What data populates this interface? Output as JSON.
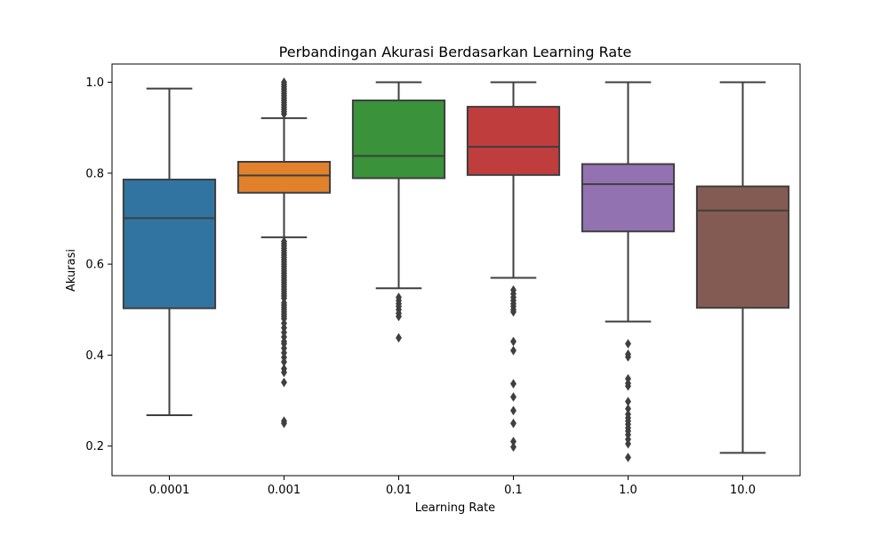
{
  "chart_data": {
    "type": "box",
    "title": "Perbandingan Akurasi Berdasarkan Learning Rate",
    "xlabel": "Learning Rate",
    "ylabel": "Akurasi",
    "categories": [
      "0.0001",
      "0.001",
      "0.01",
      "0.1",
      "1.0",
      "10.0"
    ],
    "ylim": [
      0.135,
      1.04
    ],
    "yticks": [
      0.2,
      0.4,
      0.6,
      0.8,
      1.0
    ],
    "ytick_labels": [
      "0.2",
      "0.4",
      "0.6",
      "0.8",
      "1.0"
    ],
    "grid": false,
    "legend": "none",
    "boxes": [
      {
        "category": "0.0001",
        "color": "#3274a1",
        "whisker_low": 0.268,
        "q1": 0.503,
        "median": 0.701,
        "q3": 0.786,
        "whisker_high": 0.986,
        "outliers": []
      },
      {
        "category": "0.001",
        "color": "#e1812c",
        "whisker_low": 0.659,
        "q1": 0.757,
        "median": 0.795,
        "q3": 0.825,
        "whisker_high": 0.921,
        "outliers": [
          0.93,
          0.935,
          0.94,
          0.945,
          0.95,
          0.955,
          0.96,
          0.965,
          0.97,
          0.975,
          0.98,
          0.985,
          0.99,
          0.995,
          1.0,
          0.65,
          0.645,
          0.64,
          0.635,
          0.63,
          0.625,
          0.62,
          0.615,
          0.61,
          0.605,
          0.6,
          0.595,
          0.59,
          0.585,
          0.58,
          0.575,
          0.57,
          0.565,
          0.56,
          0.555,
          0.55,
          0.545,
          0.54,
          0.535,
          0.53,
          0.525,
          0.515,
          0.51,
          0.505,
          0.5,
          0.495,
          0.49,
          0.485,
          0.48,
          0.47,
          0.46,
          0.45,
          0.44,
          0.43,
          0.425,
          0.415,
          0.405,
          0.395,
          0.385,
          0.37,
          0.362,
          0.34,
          0.255,
          0.25
        ]
      },
      {
        "category": "0.01",
        "color": "#3a923a",
        "whisker_low": 0.547,
        "q1": 0.789,
        "median": 0.838,
        "q3": 0.96,
        "whisker_high": 1.0,
        "outliers": [
          0.527,
          0.52,
          0.513,
          0.507,
          0.5,
          0.492,
          0.485,
          0.438
        ]
      },
      {
        "category": "0.1",
        "color": "#c03d3e",
        "whisker_low": 0.57,
        "q1": 0.796,
        "median": 0.858,
        "q3": 0.946,
        "whisker_high": 1.0,
        "outliers": [
          0.543,
          0.535,
          0.527,
          0.52,
          0.513,
          0.507,
          0.5,
          0.495,
          0.43,
          0.41,
          0.337,
          0.308,
          0.278,
          0.25,
          0.21,
          0.198
        ]
      },
      {
        "category": "1.0",
        "color": "#9372b2",
        "whisker_low": 0.474,
        "q1": 0.672,
        "median": 0.776,
        "q3": 0.82,
        "whisker_high": 1.0,
        "outliers": [
          0.425,
          0.402,
          0.396,
          0.348,
          0.338,
          0.332,
          0.298,
          0.282,
          0.27,
          0.262,
          0.255,
          0.248,
          0.24,
          0.233,
          0.225,
          0.215,
          0.205,
          0.175
        ]
      },
      {
        "category": "10.0",
        "color": "#845b53",
        "whisker_low": 0.185,
        "q1": 0.504,
        "median": 0.718,
        "q3": 0.771,
        "whisker_high": 1.0,
        "outliers": []
      }
    ]
  }
}
